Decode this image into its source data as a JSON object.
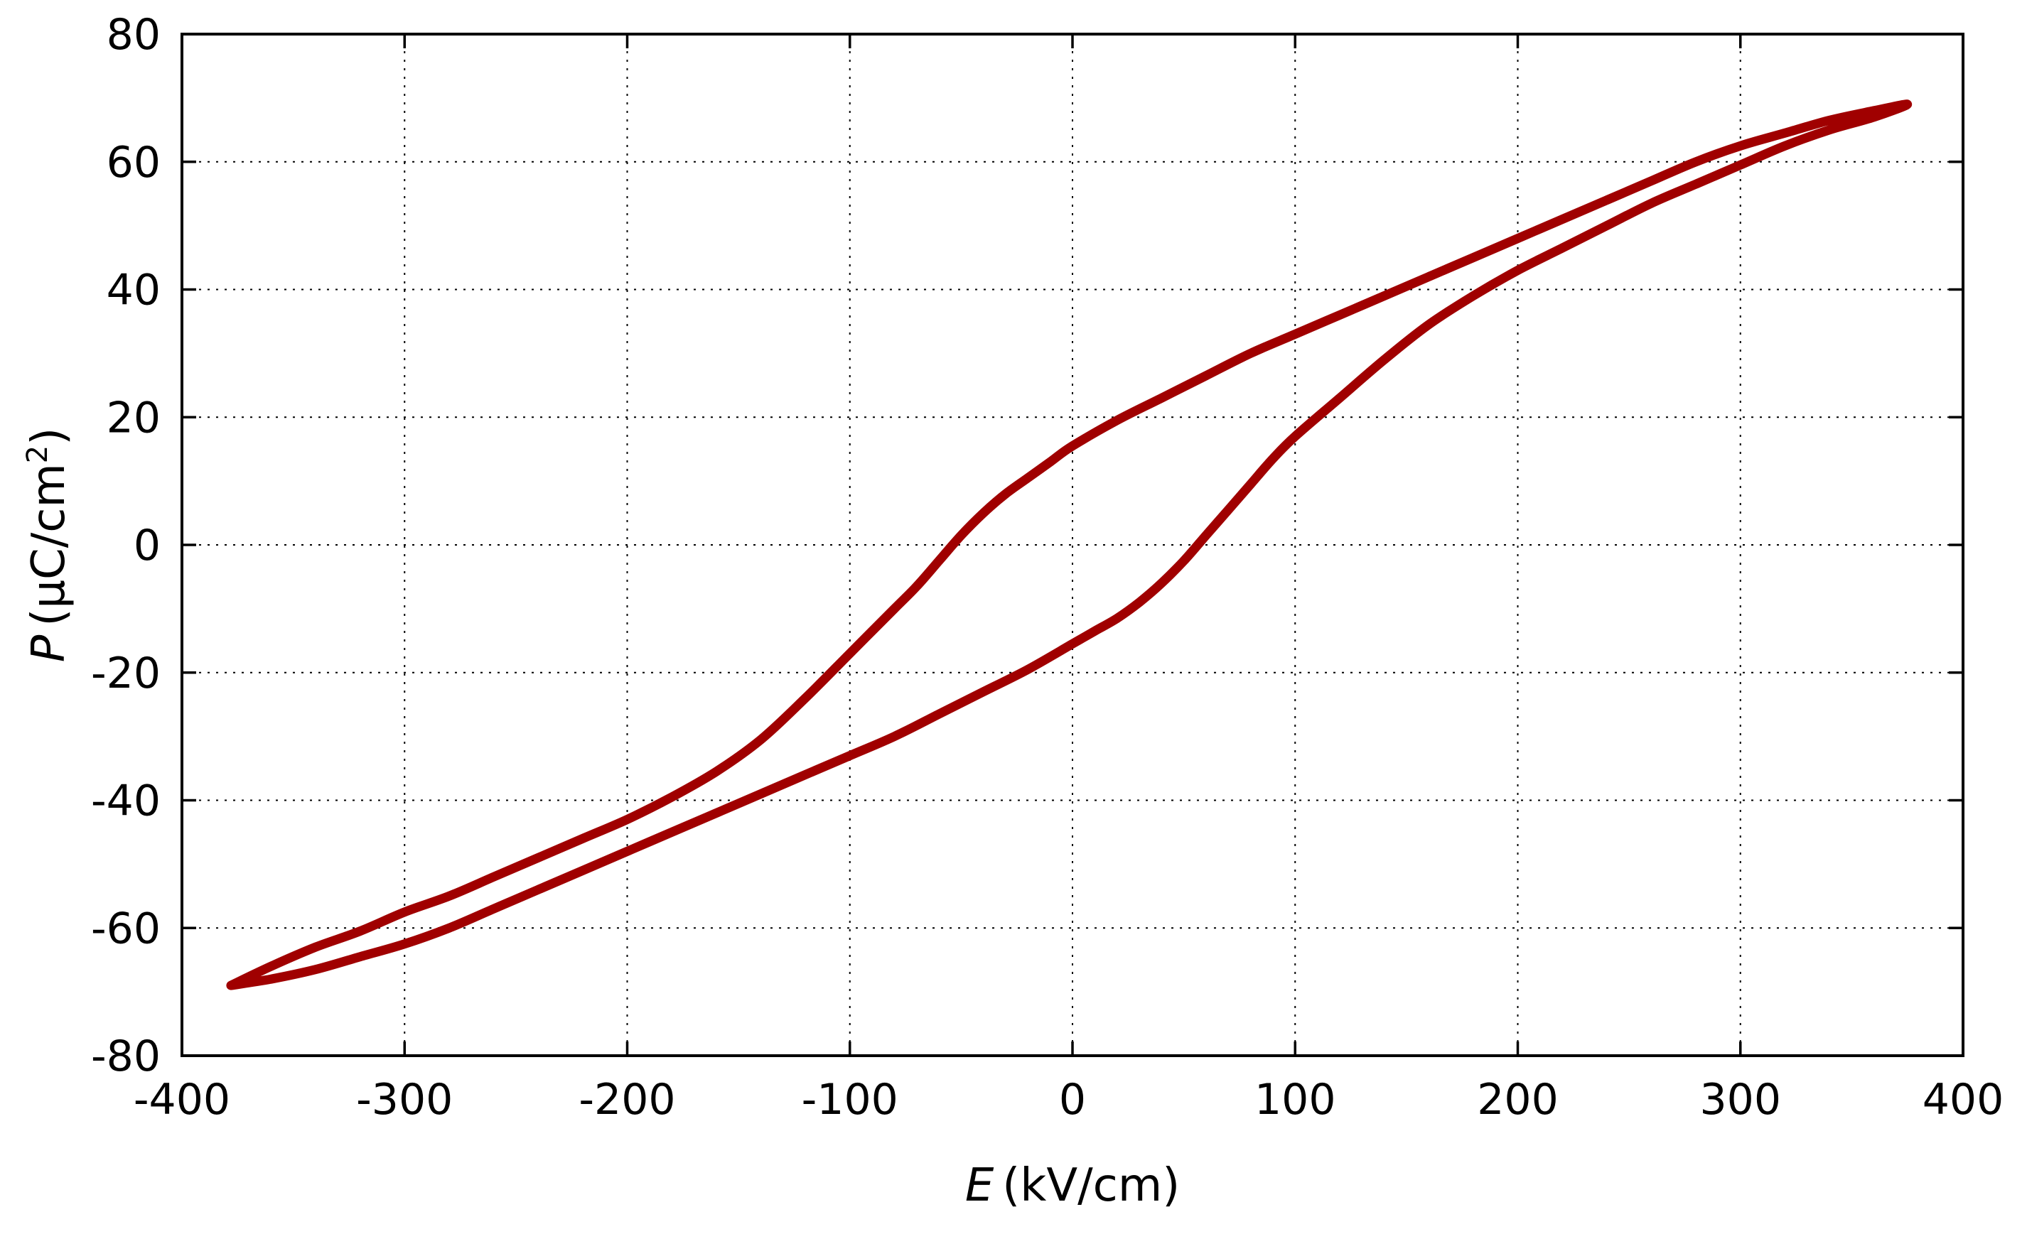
{
  "chart_data": {
    "type": "line",
    "title": "",
    "xlabel": {
      "symbol": "E",
      "unit": "(kV/cm)"
    },
    "ylabel": {
      "symbol": "P",
      "unit_prefix": "(μC/cm",
      "unit_sup": "2",
      "unit_suffix": ")"
    },
    "xlim": [
      -400,
      400
    ],
    "ylim": [
      -80,
      80
    ],
    "x_ticks": [
      -400,
      -300,
      -200,
      -100,
      0,
      100,
      200,
      300,
      400
    ],
    "y_ticks": [
      -80,
      -60,
      -40,
      -20,
      0,
      20,
      40,
      60,
      80
    ],
    "grid": true,
    "grid_style": "dotted",
    "legend": "none",
    "series": [
      {
        "color": "#a00000",
        "closed": true,
        "points": [
          [
            -378,
            -69
          ],
          [
            -360,
            -66
          ],
          [
            -340,
            -63
          ],
          [
            -320,
            -60.5
          ],
          [
            -300,
            -57.5
          ],
          [
            -280,
            -55
          ],
          [
            -260,
            -52
          ],
          [
            -240,
            -49
          ],
          [
            -220,
            -46
          ],
          [
            -200,
            -43
          ],
          [
            -180,
            -39.5
          ],
          [
            -160,
            -35.5
          ],
          [
            -140,
            -30.5
          ],
          [
            -120,
            -24
          ],
          [
            -100,
            -17
          ],
          [
            -80,
            -10
          ],
          [
            -70,
            -6.5
          ],
          [
            -60,
            -2.5
          ],
          [
            -50,
            1.5
          ],
          [
            -40,
            5
          ],
          [
            -30,
            8
          ],
          [
            -20,
            10.5
          ],
          [
            -10,
            13
          ],
          [
            0,
            15.5
          ],
          [
            20,
            19.5
          ],
          [
            40,
            23
          ],
          [
            60,
            26.5
          ],
          [
            80,
            30
          ],
          [
            100,
            33
          ],
          [
            120,
            36
          ],
          [
            140,
            39
          ],
          [
            160,
            42
          ],
          [
            180,
            45
          ],
          [
            200,
            48
          ],
          [
            220,
            51
          ],
          [
            240,
            54
          ],
          [
            260,
            57
          ],
          [
            280,
            60
          ],
          [
            300,
            62.5
          ],
          [
            320,
            64.5
          ],
          [
            340,
            66.5
          ],
          [
            360,
            68
          ],
          [
            375,
            69
          ],
          [
            360,
            67
          ],
          [
            340,
            65
          ],
          [
            320,
            62.5
          ],
          [
            300,
            59.5
          ],
          [
            280,
            56.5
          ],
          [
            260,
            53.5
          ],
          [
            240,
            50
          ],
          [
            220,
            46.5
          ],
          [
            200,
            43
          ],
          [
            180,
            39
          ],
          [
            160,
            34.5
          ],
          [
            140,
            29
          ],
          [
            120,
            23
          ],
          [
            100,
            17
          ],
          [
            90,
            13.5
          ],
          [
            80,
            9.5
          ],
          [
            70,
            5.5
          ],
          [
            60,
            1.5
          ],
          [
            50,
            -2.5
          ],
          [
            40,
            -6
          ],
          [
            30,
            -9
          ],
          [
            20,
            -11.5
          ],
          [
            10,
            -13.5
          ],
          [
            0,
            -15.5
          ],
          [
            -20,
            -19.5
          ],
          [
            -40,
            -23
          ],
          [
            -60,
            -26.5
          ],
          [
            -80,
            -30
          ],
          [
            -100,
            -33
          ],
          [
            -120,
            -36
          ],
          [
            -140,
            -39
          ],
          [
            -160,
            -42
          ],
          [
            -180,
            -45
          ],
          [
            -200,
            -48
          ],
          [
            -220,
            -51
          ],
          [
            -240,
            -54
          ],
          [
            -260,
            -57
          ],
          [
            -280,
            -60
          ],
          [
            -300,
            -62.5
          ],
          [
            -320,
            -64.5
          ],
          [
            -340,
            -66.5
          ],
          [
            -360,
            -68
          ],
          [
            -378,
            -69
          ]
        ]
      }
    ]
  }
}
